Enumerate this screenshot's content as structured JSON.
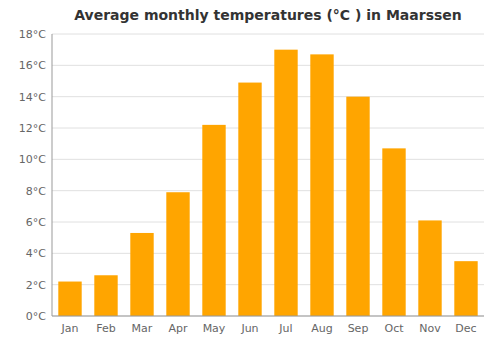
{
  "chart_data": {
    "type": "bar",
    "title": "Average monthly temperatures (°C ) in Maarssen",
    "categories": [
      "Jan",
      "Feb",
      "Mar",
      "Apr",
      "May",
      "Jun",
      "Jul",
      "Aug",
      "Sep",
      "Oct",
      "Nov",
      "Dec"
    ],
    "values": [
      2.2,
      2.6,
      5.3,
      7.9,
      12.2,
      14.9,
      17.0,
      16.7,
      14.0,
      10.7,
      6.1,
      3.5
    ],
    "color": "#FFA500",
    "ylim": [
      0,
      18
    ],
    "yticks": [
      {
        "value": 0,
        "label": "0°C"
      },
      {
        "value": 2,
        "label": "2°C"
      },
      {
        "value": 4,
        "label": "4°C"
      },
      {
        "value": 6,
        "label": "6°C"
      },
      {
        "value": 8,
        "label": "8°C"
      },
      {
        "value": 10,
        "label": "10°C"
      },
      {
        "value": 12,
        "label": "12°C"
      },
      {
        "value": 14,
        "label": "14°C"
      },
      {
        "value": 16,
        "label": "16°C"
      },
      {
        "value": 18,
        "label": "18°C"
      }
    ],
    "grid": true
  }
}
